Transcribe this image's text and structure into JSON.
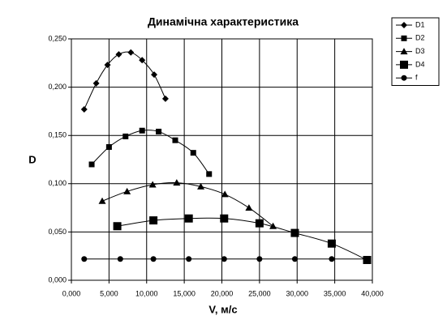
{
  "chart_data": {
    "type": "line",
    "title": "Динамічна характеристика",
    "x_label": "V, м/с",
    "y_label": "D",
    "xlim": [
      0,
      40000
    ],
    "xticks": [
      {
        "value": 0,
        "label": "0,000"
      },
      {
        "value": 5000,
        "label": "5,000"
      },
      {
        "value": 10000,
        "label": "10,000"
      },
      {
        "value": 15000,
        "label": "15,000"
      },
      {
        "value": 20000,
        "label": "20,000"
      },
      {
        "value": 25000,
        "label": "25,000"
      },
      {
        "value": 30000,
        "label": "30,000"
      },
      {
        "value": 35000,
        "label": "35,000"
      },
      {
        "value": 40000,
        "label": "40,000"
      }
    ],
    "ylim": [
      0,
      0.25
    ],
    "yticks": [
      {
        "value": 0,
        "label": "0,000"
      },
      {
        "value": 0.05,
        "label": "0,050"
      },
      {
        "value": 0.1,
        "label": "0,100"
      },
      {
        "value": 0.15,
        "label": "0,150"
      },
      {
        "value": 0.2,
        "label": "0,200"
      },
      {
        "value": 0.25,
        "label": "0,250"
      }
    ],
    "grid": true,
    "legend": "right",
    "smooth": true,
    "series": [
      {
        "name": "D1",
        "color": "#000000",
        "marker": "diamond",
        "x": [
          1700,
          3300,
          4800,
          6300,
          7900,
          9400,
          11000,
          12500
        ],
        "values": [
          0.177,
          0.204,
          0.223,
          0.234,
          0.236,
          0.228,
          0.213,
          0.188
        ]
      },
      {
        "name": "D2",
        "color": "#000000",
        "marker": "square",
        "x": [
          2700,
          5000,
          7200,
          9400,
          11600,
          13800,
          16200,
          18300
        ],
        "values": [
          0.12,
          0.138,
          0.149,
          0.155,
          0.154,
          0.145,
          0.132,
          0.11
        ]
      },
      {
        "name": "D3",
        "color": "#000000",
        "marker": "triangle",
        "x": [
          4100,
          7400,
          10800,
          14000,
          17200,
          20400,
          23600,
          26800
        ],
        "values": [
          0.082,
          0.092,
          0.099,
          0.101,
          0.097,
          0.089,
          0.075,
          0.056
        ]
      },
      {
        "name": "D4",
        "color": "#000000",
        "marker": "big-square",
        "x": [
          6100,
          10900,
          15600,
          20300,
          25000,
          29700,
          34600,
          39300
        ],
        "values": [
          0.056,
          0.062,
          0.064,
          0.064,
          0.059,
          0.049,
          0.038,
          0.021
        ]
      },
      {
        "name": "f",
        "color": "#000000",
        "marker": "circle",
        "x": [
          1700,
          6500,
          10900,
          15600,
          20300,
          25000,
          29700,
          34600,
          39300
        ],
        "values": [
          0.022,
          0.022,
          0.022,
          0.022,
          0.022,
          0.022,
          0.022,
          0.022,
          0.022
        ]
      }
    ]
  }
}
